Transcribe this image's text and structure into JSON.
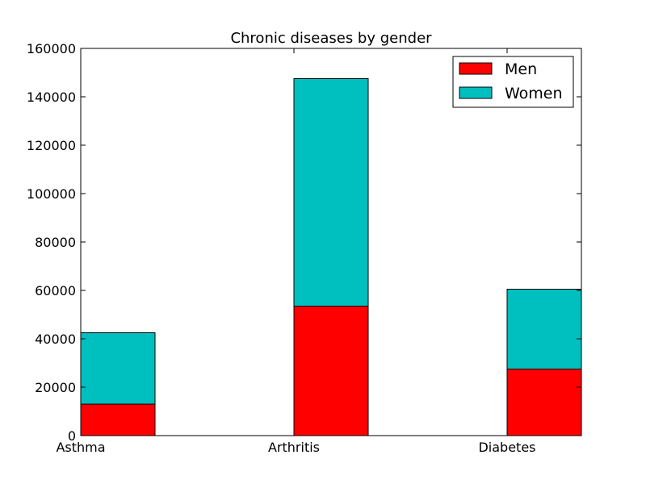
{
  "chart_data": {
    "type": "bar",
    "stacked": true,
    "title": "Chronic diseases by gender",
    "xlabel": "",
    "ylabel": "",
    "categories": [
      "Asthma",
      "Arthritis",
      "Diabetes"
    ],
    "series": [
      {
        "name": "Men",
        "color": "#ff0000",
        "values": [
          13000,
          53500,
          27500
        ]
      },
      {
        "name": "Women",
        "color": "#00bfbf",
        "values": [
          29500,
          94000,
          33000
        ]
      }
    ],
    "ylim": [
      0,
      160000
    ],
    "yticks": [
      "0",
      "20000",
      "40000",
      "60000",
      "80000",
      "100000",
      "120000",
      "140000",
      "160000"
    ],
    "grid": false,
    "legend": {
      "position": "top-right",
      "entries": [
        "Men",
        "Women"
      ]
    }
  }
}
